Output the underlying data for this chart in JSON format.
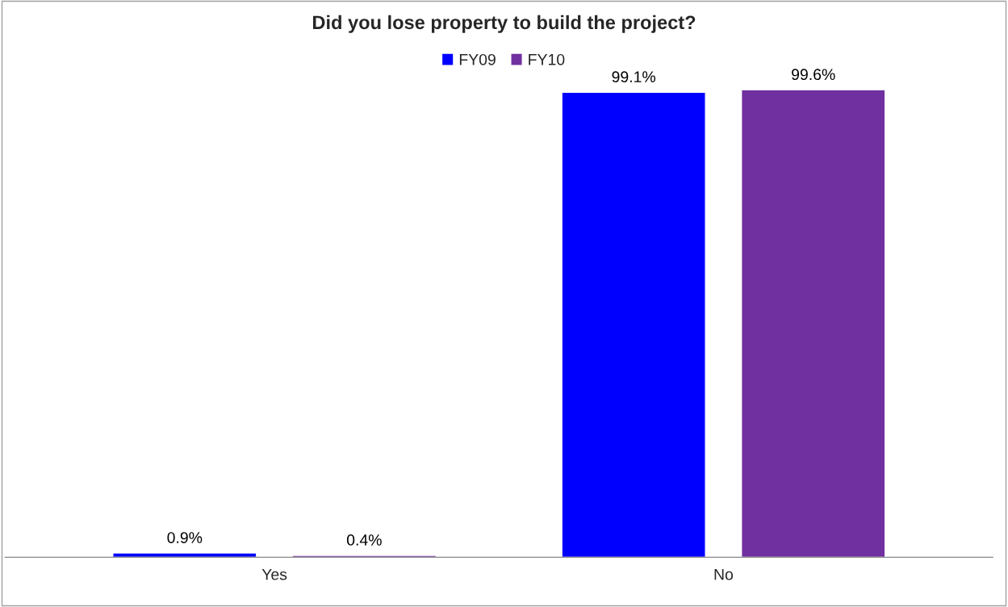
{
  "chart_data": {
    "type": "bar",
    "title": "Did you lose property to build the project?",
    "categories": [
      "Yes",
      "No"
    ],
    "series": [
      {
        "name": "FY09",
        "color": "#0000ff",
        "values": [
          0.9,
          99.1
        ],
        "value_labels": [
          "0.9%",
          "99.1%"
        ]
      },
      {
        "name": "FY10",
        "color": "#7030a0",
        "values": [
          0.4,
          99.6
        ],
        "value_labels": [
          "0.4%",
          "99.6%"
        ]
      }
    ],
    "legend": "top",
    "grid": false
  }
}
